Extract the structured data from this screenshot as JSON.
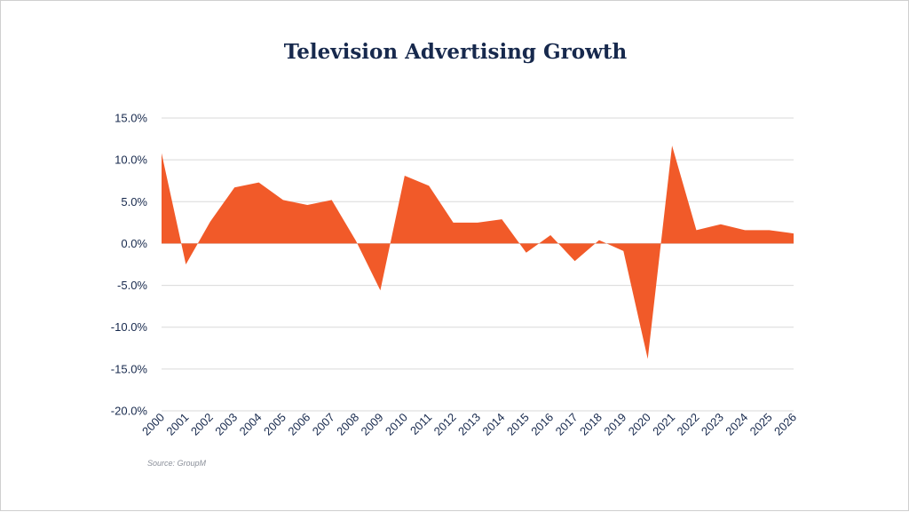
{
  "chart_data": {
    "type": "area",
    "title": "Television Advertising Growth",
    "source": "Source: GroupM",
    "xlabel": "",
    "ylabel": "",
    "x": [
      "2000",
      "2001",
      "2002",
      "2003",
      "2004",
      "2005",
      "2006",
      "2007",
      "2008",
      "2009",
      "2010",
      "2011",
      "2012",
      "2013",
      "2014",
      "2015",
      "2016",
      "2017",
      "2018",
      "2019",
      "2020",
      "2021",
      "2022",
      "2023",
      "2024",
      "2025",
      "2026"
    ],
    "values": [
      10.8,
      -2.5,
      2.6,
      6.7,
      7.3,
      5.2,
      4.6,
      5.2,
      0.3,
      -5.6,
      8.1,
      6.9,
      2.5,
      2.5,
      2.9,
      -1.1,
      1.0,
      -2.1,
      0.4,
      -0.9,
      -13.8,
      11.7,
      1.6,
      2.3,
      1.6,
      1.6,
      1.2
    ],
    "yticks": [
      "15.0%",
      "10.0%",
      "5.0%",
      "0.0%",
      "-5.0%",
      "-10.0%",
      "-15.0%",
      "-20.0%"
    ],
    "ytick_values": [
      15,
      10,
      5,
      0,
      -5,
      -10,
      -15,
      -20
    ],
    "ylim": [
      -20,
      15
    ],
    "grid": true,
    "legend": "none",
    "colors": {
      "fill": "#f15a29",
      "title": "#17294d",
      "grid": "#d9d9d9"
    }
  }
}
